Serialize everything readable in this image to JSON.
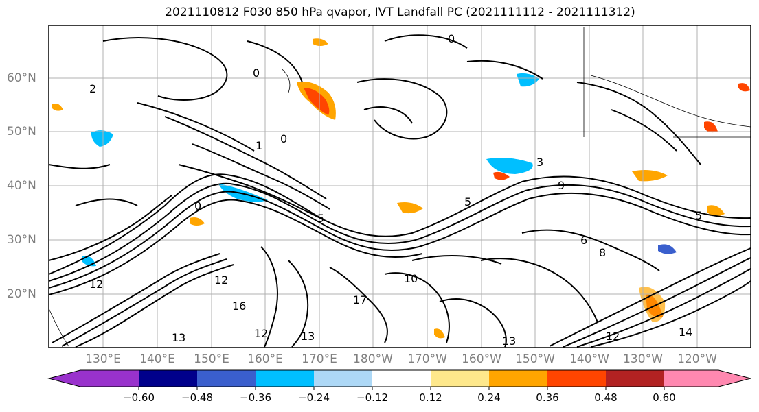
{
  "title": "2021110812 F030 850 hPa qvapor, IVT Landfall PC (2021111112 - 2021111312)",
  "lat_labels": [
    "60°N",
    "50°N",
    "40°N",
    "30°N",
    "20°N"
  ],
  "lon_labels": [
    "130°E",
    "140°E",
    "150°E",
    "160°E",
    "170°E",
    "180°W",
    "170°W",
    "160°W",
    "150°W",
    "140°W",
    "130°W",
    "120°W"
  ],
  "contour_labels": [
    "0",
    "0",
    "2",
    "1",
    "0",
    "3",
    "5",
    "9",
    "6",
    "5",
    "12",
    "12",
    "13",
    "16",
    "12",
    "13",
    "17",
    "10",
    "8",
    "13",
    "12",
    "14",
    "5",
    "0"
  ],
  "colorbar": {
    "ticks": [
      "−0.60",
      "−0.48",
      "−0.36",
      "−0.24",
      "−0.12",
      "0.12",
      "0.24",
      "0.36",
      "0.48",
      "0.60"
    ],
    "colors": [
      "#9932cc",
      "#00008b",
      "#3a5fcd",
      "#00bfff",
      "#add8f6",
      "#ffffff",
      "#fee88b",
      "#ffa500",
      "#ff4500",
      "#b22222",
      "#ff88b0"
    ]
  }
}
